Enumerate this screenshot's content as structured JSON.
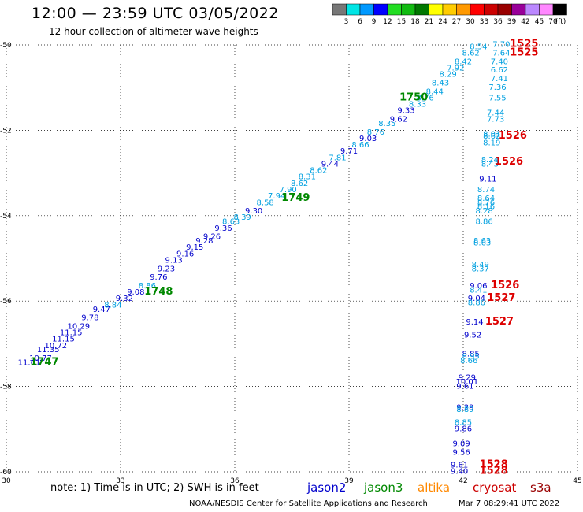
{
  "header": {
    "title": "12:00 — 23:59 UTC 03/05/2022",
    "subtitle": "12 hour collection of altimeter wave heights"
  },
  "colorbar": {
    "colors": [
      "#777777",
      "#00e5e5",
      "#0099ff",
      "#0000ff",
      "#22dd22",
      "#11bb11",
      "#007700",
      "#ffff00",
      "#ffcc00",
      "#ff9900",
      "#ff0000",
      "#cc0000",
      "#990000",
      "#990099",
      "#bb88ff",
      "#ff88ff",
      "#000000"
    ],
    "labels": [
      "3",
      "6",
      "9",
      "12",
      "15",
      "18",
      "21",
      "24",
      "27",
      "30",
      "33",
      "36",
      "39",
      "42",
      "45",
      "70",
      "(ft)"
    ]
  },
  "footer": {
    "note": "note: 1) Time is in UTC; 2) SWH is in feet",
    "credit": "NOAA/NESDIS Center for Satellite Applications and Research",
    "timestamp": "Mar  7 08:29:41 UTC 2022"
  },
  "satellites": [
    {
      "name": "jason2",
      "color": "#0000cc"
    },
    {
      "name": "jason3",
      "color": "#008800"
    },
    {
      "name": "altika",
      "color": "#ff8800"
    },
    {
      "name": "cryosat",
      "color": "#cc0000"
    },
    {
      "name": "s3a",
      "color": "#990000"
    }
  ],
  "chart_data": {
    "type": "scatter",
    "xlim": [
      30,
      45
    ],
    "ylim": [
      -60,
      -50
    ],
    "x_ticks": [
      "30",
      "33",
      "36",
      "39",
      "42",
      "45"
    ],
    "y_ticks": [
      "-50",
      "-52",
      "-54",
      "-56",
      "-58",
      "-60"
    ],
    "grid": true,
    "colors": {
      "dark": "#0000cc",
      "light": "#00a0e0",
      "time1": "#008800",
      "time2": "#dd0000"
    },
    "wave_heights": [
      {
        "x": 30.6,
        "y": -57.5,
        "v": "11.61",
        "c": "dark"
      },
      {
        "x": 30.9,
        "y": -57.4,
        "v": "10.77",
        "c": "dark"
      },
      {
        "x": 31.1,
        "y": -57.2,
        "v": "11.35",
        "c": "dark"
      },
      {
        "x": 31.3,
        "y": -57.1,
        "v": "10.72",
        "c": "dark"
      },
      {
        "x": 31.5,
        "y": -56.95,
        "v": "11.15",
        "c": "dark"
      },
      {
        "x": 31.7,
        "y": -56.8,
        "v": "11.15",
        "c": "dark"
      },
      {
        "x": 31.9,
        "y": -56.65,
        "v": "10.29",
        "c": "dark"
      },
      {
        "x": 32.2,
        "y": -56.45,
        "v": "9.78",
        "c": "dark"
      },
      {
        "x": 32.5,
        "y": -56.25,
        "v": "9.47",
        "c": "dark"
      },
      {
        "x": 32.8,
        "y": -56.15,
        "v": "8.84",
        "c": "light"
      },
      {
        "x": 33.1,
        "y": -56.0,
        "v": "9.32",
        "c": "dark"
      },
      {
        "x": 33.4,
        "y": -55.85,
        "v": "9.08",
        "c": "dark"
      },
      {
        "x": 33.7,
        "y": -55.7,
        "v": "8.86",
        "c": "light"
      },
      {
        "x": 34.0,
        "y": -55.5,
        "v": "9.76",
        "c": "dark"
      },
      {
        "x": 34.2,
        "y": -55.3,
        "v": "9.23",
        "c": "dark"
      },
      {
        "x": 34.4,
        "y": -55.1,
        "v": "9.13",
        "c": "dark"
      },
      {
        "x": 34.7,
        "y": -54.95,
        "v": "9.16",
        "c": "dark"
      },
      {
        "x": 34.95,
        "y": -54.8,
        "v": "9.15",
        "c": "dark"
      },
      {
        "x": 35.2,
        "y": -54.65,
        "v": "9.28",
        "c": "dark"
      },
      {
        "x": 35.4,
        "y": -54.55,
        "v": "9.26",
        "c": "dark"
      },
      {
        "x": 35.7,
        "y": -54.35,
        "v": "9.36",
        "c": "dark"
      },
      {
        "x": 35.9,
        "y": -54.2,
        "v": "8.63",
        "c": "light"
      },
      {
        "x": 36.2,
        "y": -54.1,
        "v": "8.39",
        "c": "light"
      },
      {
        "x": 36.5,
        "y": -53.95,
        "v": "9.30",
        "c": "dark"
      },
      {
        "x": 36.8,
        "y": -53.75,
        "v": "8.58",
        "c": "light"
      },
      {
        "x": 37.1,
        "y": -53.6,
        "v": "7.94",
        "c": "light"
      },
      {
        "x": 37.4,
        "y": -53.45,
        "v": "7.90",
        "c": "light"
      },
      {
        "x": 37.7,
        "y": -53.3,
        "v": "8.62",
        "c": "light"
      },
      {
        "x": 37.9,
        "y": -53.15,
        "v": "8.31",
        "c": "light"
      },
      {
        "x": 38.2,
        "y": -53.0,
        "v": "8.62",
        "c": "light"
      },
      {
        "x": 38.5,
        "y": -52.85,
        "v": "9.44",
        "c": "dark"
      },
      {
        "x": 38.7,
        "y": -52.7,
        "v": "7.81",
        "c": "light"
      },
      {
        "x": 39.0,
        "y": -52.55,
        "v": "9.71",
        "c": "dark"
      },
      {
        "x": 39.3,
        "y": -52.4,
        "v": "8.66",
        "c": "light"
      },
      {
        "x": 39.5,
        "y": -52.25,
        "v": "9.03",
        "c": "dark"
      },
      {
        "x": 39.7,
        "y": -52.1,
        "v": "8.76",
        "c": "light"
      },
      {
        "x": 40.0,
        "y": -51.9,
        "v": "8.35",
        "c": "light"
      },
      {
        "x": 40.3,
        "y": -51.8,
        "v": "9.62",
        "c": "dark"
      },
      {
        "x": 40.5,
        "y": -51.6,
        "v": "9.33",
        "c": "dark"
      },
      {
        "x": 40.8,
        "y": -51.45,
        "v": "8.33",
        "c": "light"
      },
      {
        "x": 41.0,
        "y": -51.3,
        "v": "8.76",
        "c": "light"
      },
      {
        "x": 41.25,
        "y": -51.15,
        "v": "8.44",
        "c": "light"
      },
      {
        "x": 41.4,
        "y": -50.95,
        "v": "8.43",
        "c": "light"
      },
      {
        "x": 41.6,
        "y": -50.75,
        "v": "8.29",
        "c": "light"
      },
      {
        "x": 41.8,
        "y": -50.6,
        "v": "7.92",
        "c": "light"
      },
      {
        "x": 42.0,
        "y": -50.45,
        "v": "8.42",
        "c": "light"
      },
      {
        "x": 42.2,
        "y": -50.25,
        "v": "8.62",
        "c": "light"
      },
      {
        "x": 42.4,
        "y": -50.1,
        "v": "8.54",
        "c": "light"
      },
      {
        "x": 43.0,
        "y": -50.05,
        "v": "7.70",
        "c": "light"
      },
      {
        "x": 43.0,
        "y": -50.25,
        "v": "7.64",
        "c": "light"
      },
      {
        "x": 42.95,
        "y": -50.45,
        "v": "7.40",
        "c": "light"
      },
      {
        "x": 42.95,
        "y": -50.65,
        "v": "6.62",
        "c": "light"
      },
      {
        "x": 42.95,
        "y": -50.85,
        "v": "7.41",
        "c": "light"
      },
      {
        "x": 42.9,
        "y": -51.05,
        "v": "7.36",
        "c": "light"
      },
      {
        "x": 42.9,
        "y": -51.3,
        "v": "7.55",
        "c": "light"
      },
      {
        "x": 42.85,
        "y": -51.65,
        "v": "7.44",
        "c": "light"
      },
      {
        "x": 42.85,
        "y": -51.8,
        "v": "7.73",
        "c": "light"
      },
      {
        "x": 42.75,
        "y": -52.15,
        "v": "8.01",
        "c": "light"
      },
      {
        "x": 42.75,
        "y": -52.2,
        "v": "8.62",
        "c": "light"
      },
      {
        "x": 42.75,
        "y": -52.35,
        "v": "8.19",
        "c": "light"
      },
      {
        "x": 42.7,
        "y": -52.75,
        "v": "8.24",
        "c": "light"
      },
      {
        "x": 42.7,
        "y": -52.85,
        "v": "8.43",
        "c": "light"
      },
      {
        "x": 42.65,
        "y": -53.2,
        "v": "9.11",
        "c": "dark"
      },
      {
        "x": 42.6,
        "y": -53.45,
        "v": "8.74",
        "c": "light"
      },
      {
        "x": 42.6,
        "y": -53.65,
        "v": "8.64",
        "c": "light"
      },
      {
        "x": 42.6,
        "y": -53.75,
        "v": "8.76",
        "c": "light"
      },
      {
        "x": 42.6,
        "y": -53.85,
        "v": "8.16",
        "c": "light"
      },
      {
        "x": 42.55,
        "y": -53.95,
        "v": "8.28",
        "c": "light"
      },
      {
        "x": 42.55,
        "y": -54.2,
        "v": "8.86",
        "c": "light"
      },
      {
        "x": 42.5,
        "y": -54.65,
        "v": "8.63",
        "c": "light"
      },
      {
        "x": 42.5,
        "y": -54.7,
        "v": "8.63",
        "c": "light"
      },
      {
        "x": 42.45,
        "y": -55.2,
        "v": "8.49",
        "c": "light"
      },
      {
        "x": 42.45,
        "y": -55.3,
        "v": "8.37",
        "c": "light"
      },
      {
        "x": 42.4,
        "y": -55.7,
        "v": "9.06",
        "c": "dark"
      },
      {
        "x": 42.4,
        "y": -55.8,
        "v": "8.41",
        "c": "light"
      },
      {
        "x": 42.35,
        "y": -56.0,
        "v": "9.04",
        "c": "dark"
      },
      {
        "x": 42.35,
        "y": -56.1,
        "v": "8.86",
        "c": "light"
      },
      {
        "x": 42.3,
        "y": -56.55,
        "v": "9.14",
        "c": "dark"
      },
      {
        "x": 42.25,
        "y": -56.85,
        "v": "9.52",
        "c": "dark"
      },
      {
        "x": 42.2,
        "y": -57.3,
        "v": "8.85",
        "c": "dark"
      },
      {
        "x": 42.2,
        "y": -57.35,
        "v": "8.95",
        "c": "light"
      },
      {
        "x": 42.15,
        "y": -57.45,
        "v": "8.66",
        "c": "light"
      },
      {
        "x": 42.1,
        "y": -57.85,
        "v": "9.29",
        "c": "dark"
      },
      {
        "x": 42.1,
        "y": -57.95,
        "v": "10.01",
        "c": "dark"
      },
      {
        "x": 42.05,
        "y": -58.05,
        "v": "9.61",
        "c": "dark"
      },
      {
        "x": 42.05,
        "y": -58.55,
        "v": "9.29",
        "c": "dark"
      },
      {
        "x": 42.05,
        "y": -58.6,
        "v": "8.89",
        "c": "light"
      },
      {
        "x": 42.0,
        "y": -58.9,
        "v": "8.85",
        "c": "light"
      },
      {
        "x": 42.0,
        "y": -59.05,
        "v": "9.86",
        "c": "dark"
      },
      {
        "x": 41.95,
        "y": -59.4,
        "v": "9.09",
        "c": "dark"
      },
      {
        "x": 41.95,
        "y": -59.6,
        "v": "9.56",
        "c": "dark"
      },
      {
        "x": 41.9,
        "y": -59.9,
        "v": "9.81",
        "c": "dark"
      },
      {
        "x": 41.9,
        "y": -60.05,
        "v": "9.40",
        "c": "dark"
      }
    ],
    "time_labels": [
      {
        "x": 31.0,
        "y": -57.5,
        "t": "1747",
        "c": "time1"
      },
      {
        "x": 34.0,
        "y": -55.85,
        "t": "1748",
        "c": "time1"
      },
      {
        "x": 37.6,
        "y": -53.65,
        "t": "1749",
        "c": "time1"
      },
      {
        "x": 40.7,
        "y": -51.3,
        "t": "1750",
        "c": "time1"
      },
      {
        "x": 43.6,
        "y": -50.05,
        "t": "1525",
        "c": "time2"
      },
      {
        "x": 43.6,
        "y": -50.25,
        "t": "1525",
        "c": "time2"
      },
      {
        "x": 43.3,
        "y": -52.2,
        "t": "1526",
        "c": "time2"
      },
      {
        "x": 43.2,
        "y": -52.8,
        "t": "1526",
        "c": "time2"
      },
      {
        "x": 43.1,
        "y": -55.7,
        "t": "1526",
        "c": "time2"
      },
      {
        "x": 43.0,
        "y": -56.0,
        "t": "1527",
        "c": "time2"
      },
      {
        "x": 42.95,
        "y": -56.55,
        "t": "1527",
        "c": "time2"
      },
      {
        "x": 42.8,
        "y": -59.9,
        "t": "1528",
        "c": "time2"
      },
      {
        "x": 42.8,
        "y": -60.05,
        "t": "1528",
        "c": "time2"
      }
    ]
  }
}
